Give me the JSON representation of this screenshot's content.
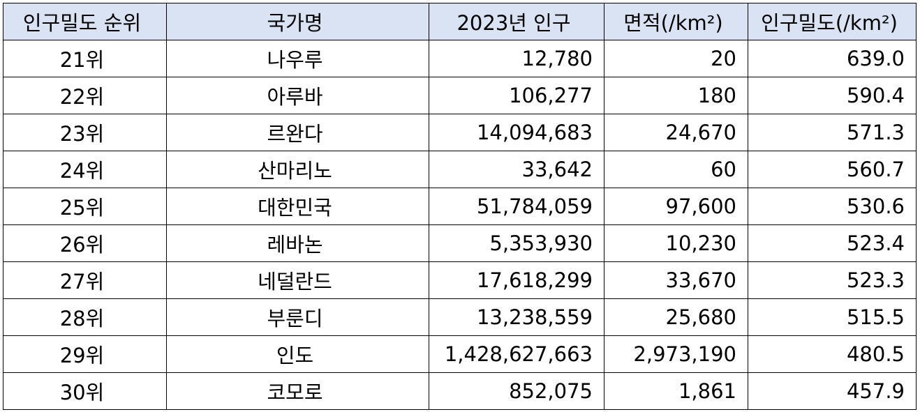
{
  "table": {
    "headers": [
      "인구밀도 순위",
      "국가명",
      "2023년 인구",
      "면적(/km²)",
      "인구밀도(/km²)"
    ],
    "rows": [
      [
        "21위",
        "나우루",
        "12,780",
        "20",
        "639.0"
      ],
      [
        "22위",
        "아루바",
        "106,277",
        "180",
        "590.4"
      ],
      [
        "23위",
        "르완다",
        "14,094,683",
        "24,670",
        "571.3"
      ],
      [
        "24위",
        "산마리노",
        "33,642",
        "60",
        "560.7"
      ],
      [
        "25위",
        "대한민국",
        "51,784,059",
        "97,600",
        "530.6"
      ],
      [
        "26위",
        "레바논",
        "5,353,930",
        "10,230",
        "523.4"
      ],
      [
        "27위",
        "네덜란드",
        "17,618,299",
        "33,670",
        "523.3"
      ],
      [
        "28위",
        "부룬디",
        "13,238,559",
        "25,680",
        "515.5"
      ],
      [
        "29위",
        "인도",
        "1,428,627,663",
        "2,973,190",
        "480.5"
      ],
      [
        "30위",
        "코모로",
        "852,075",
        "1,861",
        "457.9"
      ]
    ]
  },
  "colors": {
    "header_background": "#dae3f3",
    "border": "#000000"
  }
}
